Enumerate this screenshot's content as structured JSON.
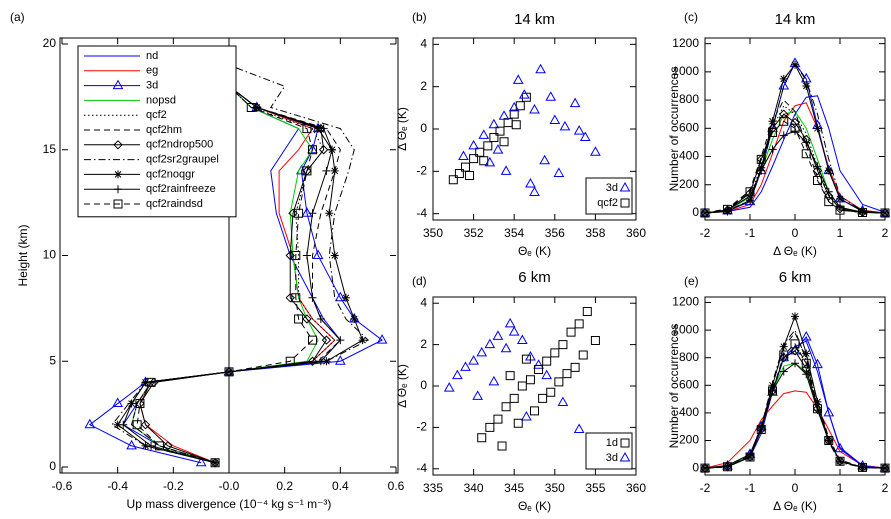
{
  "chart_data": [
    {
      "type": "line",
      "label": "(a)",
      "value_axis": "x",
      "xlabel": "Up mass divergence (10⁻⁴ kg s⁻¹ m⁻³)",
      "ylabel": "Height (km)",
      "xlim": [
        -0.6,
        0.6
      ],
      "xticks": [
        -0.6,
        -0.4,
        -0.2,
        {
          "value": 0,
          "label": "-0.0"
        },
        0.2,
        0.4,
        0.6
      ],
      "ylim": [
        0,
        20
      ],
      "yticks": [
        0,
        5,
        10,
        15,
        20
      ],
      "zero_line": true,
      "legend": "upper left",
      "y": [
        0.2,
        1,
        2,
        3,
        4,
        4.5,
        5,
        6,
        7,
        8,
        10,
        12,
        14,
        15,
        16,
        17,
        18,
        19
      ],
      "series": [
        {
          "name": "nd",
          "color": "#0000ff",
          "dash": "solid",
          "values": [
            -0.05,
            -0.25,
            -0.38,
            -0.33,
            -0.28,
            0.0,
            0.33,
            0.4,
            0.34,
            0.3,
            0.22,
            0.17,
            0.15,
            0.2,
            0.25,
            0.08,
            0.0,
            0.0
          ]
        },
        {
          "name": "eg",
          "color": "#ff0000",
          "dash": "solid",
          "values": [
            -0.05,
            -0.2,
            -0.3,
            -0.32,
            -0.28,
            0.0,
            0.3,
            0.38,
            0.3,
            0.25,
            0.23,
            0.18,
            0.18,
            0.25,
            0.3,
            0.1,
            0.0,
            0.0
          ]
        },
        {
          "name": "3d",
          "color": "#0000ff",
          "dash": "solid",
          "marker": "triangle",
          "values": [
            -0.1,
            -0.35,
            -0.5,
            -0.4,
            -0.3,
            0.0,
            0.4,
            0.55,
            0.45,
            0.4,
            0.32,
            0.28,
            0.26,
            0.3,
            0.32,
            0.1,
            0.0,
            0.0
          ]
        },
        {
          "name": "nopsd",
          "color": "#00cc00",
          "dash": "solid",
          "values": [
            -0.05,
            -0.25,
            -0.35,
            -0.33,
            -0.28,
            0.0,
            0.28,
            0.32,
            0.28,
            0.25,
            0.23,
            0.22,
            0.25,
            0.3,
            0.25,
            0.08,
            0.0,
            0.0
          ]
        },
        {
          "name": "qcf2",
          "color": "#000000",
          "dash": "dotted",
          "values": [
            -0.05,
            -0.25,
            -0.35,
            -0.33,
            -0.28,
            0.0,
            0.3,
            0.38,
            0.3,
            0.25,
            0.25,
            0.24,
            0.28,
            0.34,
            0.3,
            0.08,
            0.0,
            0.0
          ]
        },
        {
          "name": "qcf2hm",
          "color": "#000000",
          "dash": "dashed",
          "values": [
            -0.05,
            -0.25,
            -0.35,
            -0.33,
            -0.28,
            0.0,
            0.32,
            0.4,
            0.33,
            0.3,
            0.3,
            0.33,
            0.38,
            0.4,
            0.35,
            0.1,
            0.0,
            0.0
          ]
        },
        {
          "name": "qcf2ndrop500",
          "color": "#000000",
          "dash": "solid",
          "marker": "diamond",
          "values": [
            -0.05,
            -0.22,
            -0.3,
            -0.32,
            -0.27,
            0.0,
            0.3,
            0.35,
            0.28,
            0.22,
            0.22,
            0.23,
            0.28,
            0.34,
            0.33,
            0.1,
            0.0,
            0.0
          ]
        },
        {
          "name": "qcf2sr2graupel",
          "color": "#000000",
          "dash": "dashdot",
          "values": [
            -0.05,
            -0.3,
            -0.42,
            -0.36,
            -0.3,
            0.0,
            0.35,
            0.5,
            0.42,
            0.38,
            0.36,
            0.38,
            0.43,
            0.45,
            0.4,
            0.15,
            0.2,
            0.0
          ]
        },
        {
          "name": "qcf2noqgr",
          "color": "#000000",
          "dash": "solid",
          "marker": "asterisk",
          "values": [
            -0.05,
            -0.3,
            -0.4,
            -0.35,
            -0.3,
            0.0,
            0.35,
            0.48,
            0.45,
            0.42,
            0.38,
            0.36,
            0.38,
            0.37,
            0.32,
            0.1,
            0.0,
            0.0
          ]
        },
        {
          "name": "qcf2rainfreeze",
          "color": "#000000",
          "dash": "solid",
          "marker": "plus",
          "values": [
            -0.05,
            -0.28,
            -0.38,
            -0.35,
            -0.3,
            0.0,
            0.33,
            0.4,
            0.33,
            0.3,
            0.28,
            0.3,
            0.35,
            0.37,
            0.34,
            0.1,
            0.0,
            0.0
          ]
        },
        {
          "name": "qcf2raindsd",
          "color": "#000000",
          "dash": "dashed",
          "marker": "square",
          "values": [
            -0.05,
            -0.25,
            -0.33,
            -0.32,
            -0.28,
            0.0,
            0.22,
            0.3,
            0.25,
            0.24,
            0.24,
            0.25,
            0.28,
            0.3,
            0.28,
            0.08,
            0.0,
            0.0
          ]
        }
      ]
    },
    {
      "type": "scatter",
      "label": "(b)",
      "title": "14 km",
      "xlabel": "Θₑ (K)",
      "ylabel": "Δ Θₑ (K)",
      "xlim": [
        350,
        360
      ],
      "xticks": [
        350,
        352,
        354,
        356,
        358,
        360
      ],
      "ylim": [
        -4.3,
        4.3
      ],
      "yticks": [
        -4,
        -2,
        0,
        2,
        4
      ],
      "legend": "lower right",
      "series": [
        {
          "name": "3d",
          "color": "#0000ff",
          "marker": "triangle",
          "x": [
            351.5,
            352,
            352.5,
            353,
            353.5,
            354,
            354.2,
            354.5,
            355,
            355.3,
            355.8,
            356,
            356.5,
            357,
            357.5,
            358,
            352.8,
            353.6,
            355,
            356.2,
            357.2,
            354.8,
            353.2,
            355.5
          ],
          "y": [
            -1.3,
            -0.8,
            -0.3,
            0.2,
            0.6,
            1.0,
            2.3,
            1.6,
            0.9,
            2.8,
            1.5,
            0.4,
            0.1,
            1.2,
            -0.4,
            -1.1,
            -1.6,
            -2.0,
            -3.0,
            -2.1,
            -0.1,
            -2.6,
            -1.0,
            -1.5
          ]
        },
        {
          "name": "qcf2",
          "color": "#000000",
          "marker": "square",
          "x": [
            351,
            351.3,
            351.6,
            352,
            352.3,
            352.7,
            353,
            353.3,
            353.7,
            354,
            354.3,
            354.6,
            352.5,
            353.5,
            351.8,
            354.1
          ],
          "y": [
            -2.4,
            -2.1,
            -1.8,
            -1.4,
            -1.1,
            -0.8,
            -0.4,
            -0.1,
            0.3,
            0.7,
            1.1,
            1.5,
            -1.5,
            -0.6,
            -2.2,
            0.2
          ]
        }
      ]
    },
    {
      "type": "line",
      "label": "(c)",
      "title": "14 km",
      "xlabel": "Δ Θₑ (K)",
      "ylabel": "Number of occurrences",
      "xlim": [
        -2,
        2
      ],
      "xticks": [
        -2,
        -1,
        0,
        1,
        2
      ],
      "ylim": [
        -50,
        1240
      ],
      "yticks": [
        0,
        200,
        400,
        600,
        800,
        1000,
        1200
      ],
      "x": [
        -2,
        -1.5,
        -1,
        -0.75,
        -0.5,
        -0.25,
        0,
        0.25,
        0.5,
        0.75,
        1,
        1.5,
        2
      ],
      "series": [
        {
          "color": "#0000ff",
          "dash": "solid",
          "values": [
            0,
            10,
            40,
            150,
            330,
            520,
            700,
            820,
            830,
            600,
            300,
            60,
            5
          ]
        },
        {
          "color": "#ff0000",
          "dash": "solid",
          "values": [
            0,
            10,
            60,
            200,
            420,
            650,
            760,
            780,
            600,
            320,
            120,
            20,
            0
          ]
        },
        {
          "color": "#0000ff",
          "dash": "solid",
          "marker": "triangle",
          "values": [
            0,
            15,
            80,
            300,
            600,
            900,
            1060,
            950,
            620,
            300,
            100,
            15,
            0
          ]
        },
        {
          "color": "#00cc00",
          "dash": "solid",
          "values": [
            0,
            20,
            110,
            300,
            520,
            700,
            720,
            600,
            380,
            150,
            40,
            5,
            0
          ]
        },
        {
          "color": "#000000",
          "dash": "dotted",
          "values": [
            0,
            20,
            120,
            330,
            600,
            760,
            700,
            560,
            330,
            130,
            30,
            5,
            0
          ]
        },
        {
          "color": "#000000",
          "dash": "dashed",
          "values": [
            0,
            30,
            160,
            400,
            650,
            800,
            720,
            480,
            250,
            80,
            20,
            3,
            0
          ]
        },
        {
          "color": "#000000",
          "dash": "solid",
          "marker": "diamond",
          "values": [
            0,
            20,
            140,
            380,
            600,
            700,
            640,
            520,
            300,
            120,
            30,
            5,
            0
          ]
        },
        {
          "color": "#000000",
          "dash": "dashdot",
          "values": [
            0,
            15,
            90,
            300,
            600,
            900,
            1060,
            940,
            700,
            380,
            120,
            15,
            0
          ]
        },
        {
          "color": "#000000",
          "dash": "solid",
          "marker": "asterisk",
          "values": [
            0,
            10,
            90,
            320,
            650,
            950,
            1050,
            900,
            600,
            300,
            100,
            10,
            0
          ]
        },
        {
          "color": "#000000",
          "dash": "solid",
          "marker": "plus",
          "values": [
            0,
            20,
            120,
            300,
            450,
            550,
            580,
            500,
            330,
            150,
            40,
            5,
            0
          ]
        },
        {
          "color": "#000000",
          "dash": "dashed",
          "marker": "square",
          "values": [
            0,
            25,
            150,
            380,
            570,
            650,
            600,
            420,
            230,
            80,
            20,
            3,
            0
          ]
        }
      ]
    },
    {
      "type": "scatter",
      "label": "(d)",
      "title": "6 km",
      "xlabel": "Θₑ (K)",
      "ylabel": "Δ Θₑ (K)",
      "xlim": [
        335,
        360
      ],
      "xticks": [
        335,
        340,
        345,
        350,
        355,
        360
      ],
      "ylim": [
        -4.3,
        4.3
      ],
      "yticks": [
        -4,
        -2,
        0,
        2,
        4
      ],
      "legend": "lower right",
      "series": [
        {
          "name": "1d",
          "color": "#000000",
          "marker": "square",
          "x": [
            341,
            342,
            343,
            343.5,
            344,
            345,
            345.5,
            346,
            347,
            347.5,
            348,
            349,
            349.5,
            350,
            351,
            351.5,
            352,
            353,
            353.5,
            354,
            355,
            344.5,
            346.5,
            348.5,
            350.5,
            352.5
          ],
          "y": [
            -2.5,
            -2.0,
            -1.6,
            -2.9,
            -1.0,
            -0.6,
            -1.8,
            0.0,
            0.3,
            -1.2,
            0.8,
            1.2,
            -0.3,
            1.6,
            2.0,
            0.6,
            2.6,
            3.0,
            1.5,
            3.6,
            2.2,
            0.5,
            1.3,
            -0.6,
            0.2,
            0.9
          ]
        },
        {
          "name": "3d",
          "color": "#0000ff",
          "marker": "triangle",
          "x": [
            337,
            338,
            339,
            340,
            341,
            342,
            343,
            344,
            345,
            346,
            347,
            348,
            349,
            340.5,
            342.5,
            344.5,
            346.5,
            351,
            353
          ],
          "y": [
            -0.1,
            0.5,
            0.9,
            1.2,
            1.6,
            2.0,
            2.4,
            1.8,
            2.6,
            2.2,
            1.4,
            1.0,
            0.5,
            -0.5,
            0.2,
            3.0,
            -1.5,
            -0.8,
            -2.1
          ]
        }
      ]
    },
    {
      "type": "line",
      "label": "(e)",
      "title": "6 km",
      "xlabel": "Δ Θₑ (K)",
      "ylabel": "Number of occurrences",
      "xlim": [
        -2,
        2
      ],
      "xticks": [
        -2,
        -1,
        0,
        1,
        2
      ],
      "ylim": [
        -50,
        1240
      ],
      "yticks": [
        0,
        200,
        400,
        600,
        800,
        1000,
        1200
      ],
      "x": [
        -2,
        -1.5,
        -1,
        -0.75,
        -0.5,
        -0.25,
        0,
        0.25,
        0.5,
        0.75,
        1,
        1.5,
        2
      ],
      "series": [
        {
          "color": "#0000ff",
          "dash": "solid",
          "values": [
            0,
            10,
            80,
            250,
            550,
            800,
            880,
            920,
            700,
            400,
            150,
            20,
            0
          ]
        },
        {
          "color": "#ff0000",
          "dash": "solid",
          "values": [
            0,
            40,
            200,
            350,
            450,
            540,
            560,
            550,
            430,
            280,
            120,
            20,
            0
          ]
        },
        {
          "color": "#0000ff",
          "dash": "solid",
          "marker": "triangle",
          "values": [
            0,
            15,
            100,
            300,
            550,
            800,
            850,
            950,
            750,
            400,
            140,
            15,
            0
          ]
        },
        {
          "color": "#00cc00",
          "dash": "solid",
          "values": [
            0,
            10,
            90,
            290,
            560,
            740,
            760,
            700,
            450,
            200,
            50,
            5,
            0
          ]
        },
        {
          "color": "#000000",
          "dash": "dotted",
          "values": [
            0,
            10,
            80,
            280,
            560,
            800,
            880,
            760,
            450,
            200,
            50,
            5,
            0
          ]
        },
        {
          "color": "#000000",
          "dash": "dashed",
          "values": [
            0,
            10,
            90,
            300,
            600,
            880,
            980,
            800,
            480,
            220,
            60,
            5,
            0
          ]
        },
        {
          "color": "#000000",
          "dash": "solid",
          "marker": "diamond",
          "values": [
            0,
            10,
            80,
            280,
            560,
            800,
            850,
            720,
            430,
            200,
            50,
            5,
            0
          ]
        },
        {
          "color": "#000000",
          "dash": "dashdot",
          "values": [
            0,
            10,
            80,
            300,
            620,
            900,
            1000,
            780,
            440,
            190,
            40,
            5,
            0
          ]
        },
        {
          "color": "#000000",
          "dash": "solid",
          "marker": "asterisk",
          "values": [
            0,
            10,
            80,
            290,
            600,
            880,
            1100,
            830,
            480,
            200,
            50,
            5,
            0
          ]
        },
        {
          "color": "#000000",
          "dash": "solid",
          "marker": "plus",
          "values": [
            0,
            20,
            100,
            300,
            560,
            700,
            760,
            680,
            420,
            200,
            50,
            5,
            0
          ]
        },
        {
          "color": "#000000",
          "dash": "dashed",
          "marker": "square",
          "values": [
            0,
            10,
            80,
            280,
            560,
            820,
            900,
            760,
            430,
            200,
            50,
            5,
            0
          ]
        }
      ]
    }
  ]
}
